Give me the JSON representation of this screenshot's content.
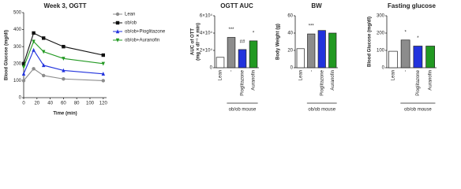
{
  "chart_data": [
    {
      "type": "line",
      "title": "Week 3, OGTT",
      "xlabel": "Time (min)",
      "ylabel": "Blood Glucose (mg/dl)",
      "x": [
        0,
        15,
        30,
        60,
        120
      ],
      "xlim": [
        0,
        125
      ],
      "xticks": [
        0,
        20,
        40,
        60,
        80,
        100,
        120
      ],
      "ylim": [
        0,
        500
      ],
      "yticks": [
        0,
        100,
        200,
        300,
        400,
        500
      ],
      "series": [
        {
          "name": "Lean",
          "color": "#8c8c8c",
          "marker": "circle",
          "values": [
            100,
            170,
            130,
            110,
            100
          ]
        },
        {
          "name": "ob/ob",
          "color": "#111111",
          "marker": "square",
          "values": [
            200,
            380,
            350,
            300,
            250
          ]
        },
        {
          "name": "ob/ob+Pioglitazone",
          "color": "#2233dd",
          "marker": "triangle",
          "values": [
            140,
            280,
            190,
            160,
            140
          ]
        },
        {
          "name": "ob/ob+Auranofin",
          "color": "#229922",
          "marker": "triangle-down",
          "values": [
            180,
            330,
            270,
            230,
            200
          ]
        }
      ]
    },
    {
      "type": "bar",
      "title": "OGTT AUC",
      "ylabel": [
        "AUC of OTT",
        "(mg × dl⁻¹ × min)"
      ],
      "categories": [
        "Lean",
        "-",
        "Pioglitazone",
        "Auranofin"
      ],
      "values": [
        12000,
        35000,
        21000,
        31000
      ],
      "colors": [
        "#ffffff",
        "#8c8c8c",
        "#2233dd",
        "#229922"
      ],
      "significance": [
        null,
        "***",
        "##",
        "*"
      ],
      "group_label": "ob/ob mouse",
      "ylim": [
        0,
        60000
      ],
      "yticks": [
        0,
        {
          "value": 20000,
          "label": "2×10⁴"
        },
        {
          "value": 40000,
          "label": "4×10⁴"
        },
        {
          "value": 60000,
          "label": "6×10⁴"
        }
      ]
    },
    {
      "type": "bar",
      "title": "BW",
      "ylabel": "Body Weight (g)",
      "categories": [
        "Lean",
        "-",
        "Pioglitazone",
        "Auranofin"
      ],
      "values": [
        22,
        39,
        43,
        40
      ],
      "colors": [
        "#ffffff",
        "#8c8c8c",
        "#2233dd",
        "#229922"
      ],
      "significance": [
        null,
        "***",
        null,
        null
      ],
      "group_label": "ob/ob mouse",
      "ylim": [
        0,
        60
      ],
      "yticks": [
        0,
        20,
        40,
        60
      ]
    },
    {
      "type": "bar",
      "title": "Fasting glucose",
      "ylabel": "Blood Glucose (mg/dl)",
      "categories": [
        "Lean",
        "-",
        "Pioglitazone",
        "Auranofin"
      ],
      "values": [
        95,
        160,
        125,
        125
      ],
      "colors": [
        "#ffffff",
        "#8c8c8c",
        "#2233dd",
        "#229922"
      ],
      "significance": [
        null,
        "*",
        "*",
        null
      ],
      "group_label": "ob/ob mouse",
      "ylim": [
        0,
        300
      ],
      "yticks": [
        0,
        100,
        200,
        300
      ]
    }
  ]
}
